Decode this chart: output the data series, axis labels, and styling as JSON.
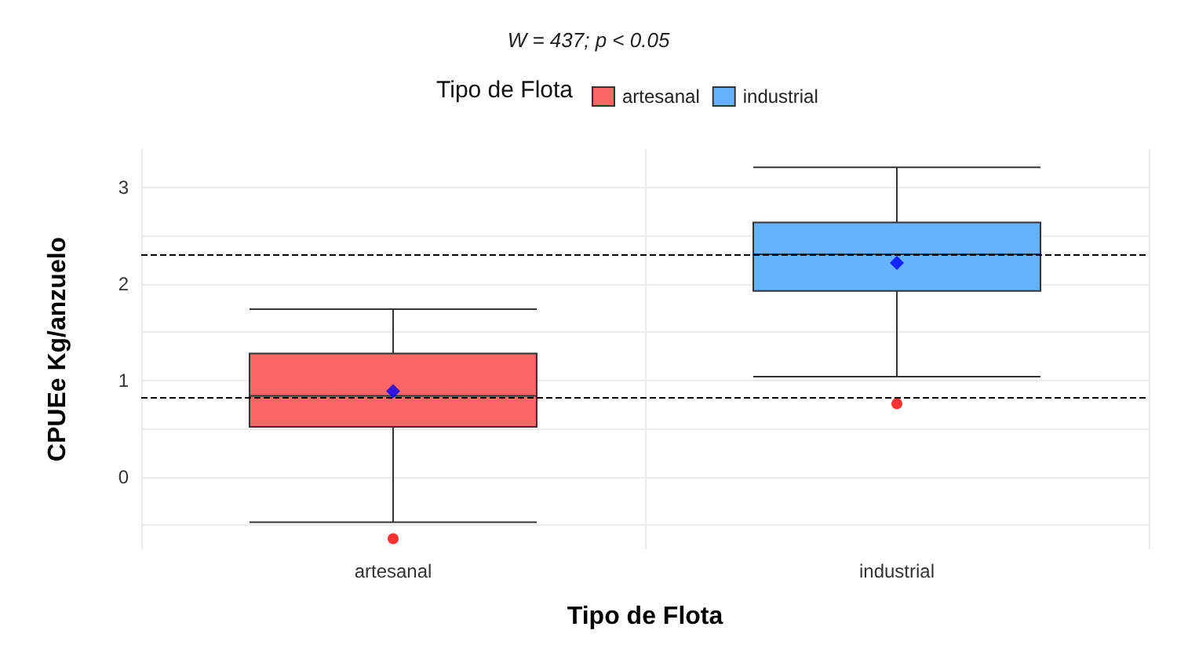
{
  "chart_data": {
    "type": "box",
    "title": "W = 437; p < 0.05",
    "xlabel": "Tipo de Flota",
    "ylabel": "CPUEe Kg/anzuelo",
    "legend_title": "Tipo de Flota",
    "legend": "top",
    "categories": [
      "artesanal",
      "industrial"
    ],
    "series": [
      {
        "name": "artesanal",
        "color": "#ff6666",
        "boxes": [
          {
            "low": -0.47,
            "q1": 0.52,
            "median": 0.84,
            "q3": 1.28,
            "high": 1.74,
            "mean": 0.89,
            "outliers": [
              -0.64
            ]
          },
          null
        ]
      },
      {
        "name": "industrial",
        "color": "#66b2ff",
        "boxes": [
          null,
          {
            "low": 1.04,
            "q1": 1.93,
            "median": 2.31,
            "q3": 2.64,
            "high": 3.21,
            "mean": 2.22,
            "outliers": [
              0.76
            ]
          }
        ]
      }
    ],
    "ylim": [
      -0.75,
      3.4
    ],
    "yticks": [
      {
        "value": -0.5,
        "label": null
      },
      0,
      {
        "value": 0.5,
        "label": null
      },
      1,
      {
        "value": 1.5,
        "label": null
      },
      2,
      {
        "value": 2.5,
        "label": null
      },
      3
    ],
    "ref_lines": [
      {
        "axis": "y",
        "value": 2.3,
        "line_style": "dashed",
        "color": "#000000"
      },
      {
        "axis": "y",
        "value": 0.83,
        "line_style": "dashed",
        "color": "#000000"
      }
    ],
    "grid": true
  }
}
